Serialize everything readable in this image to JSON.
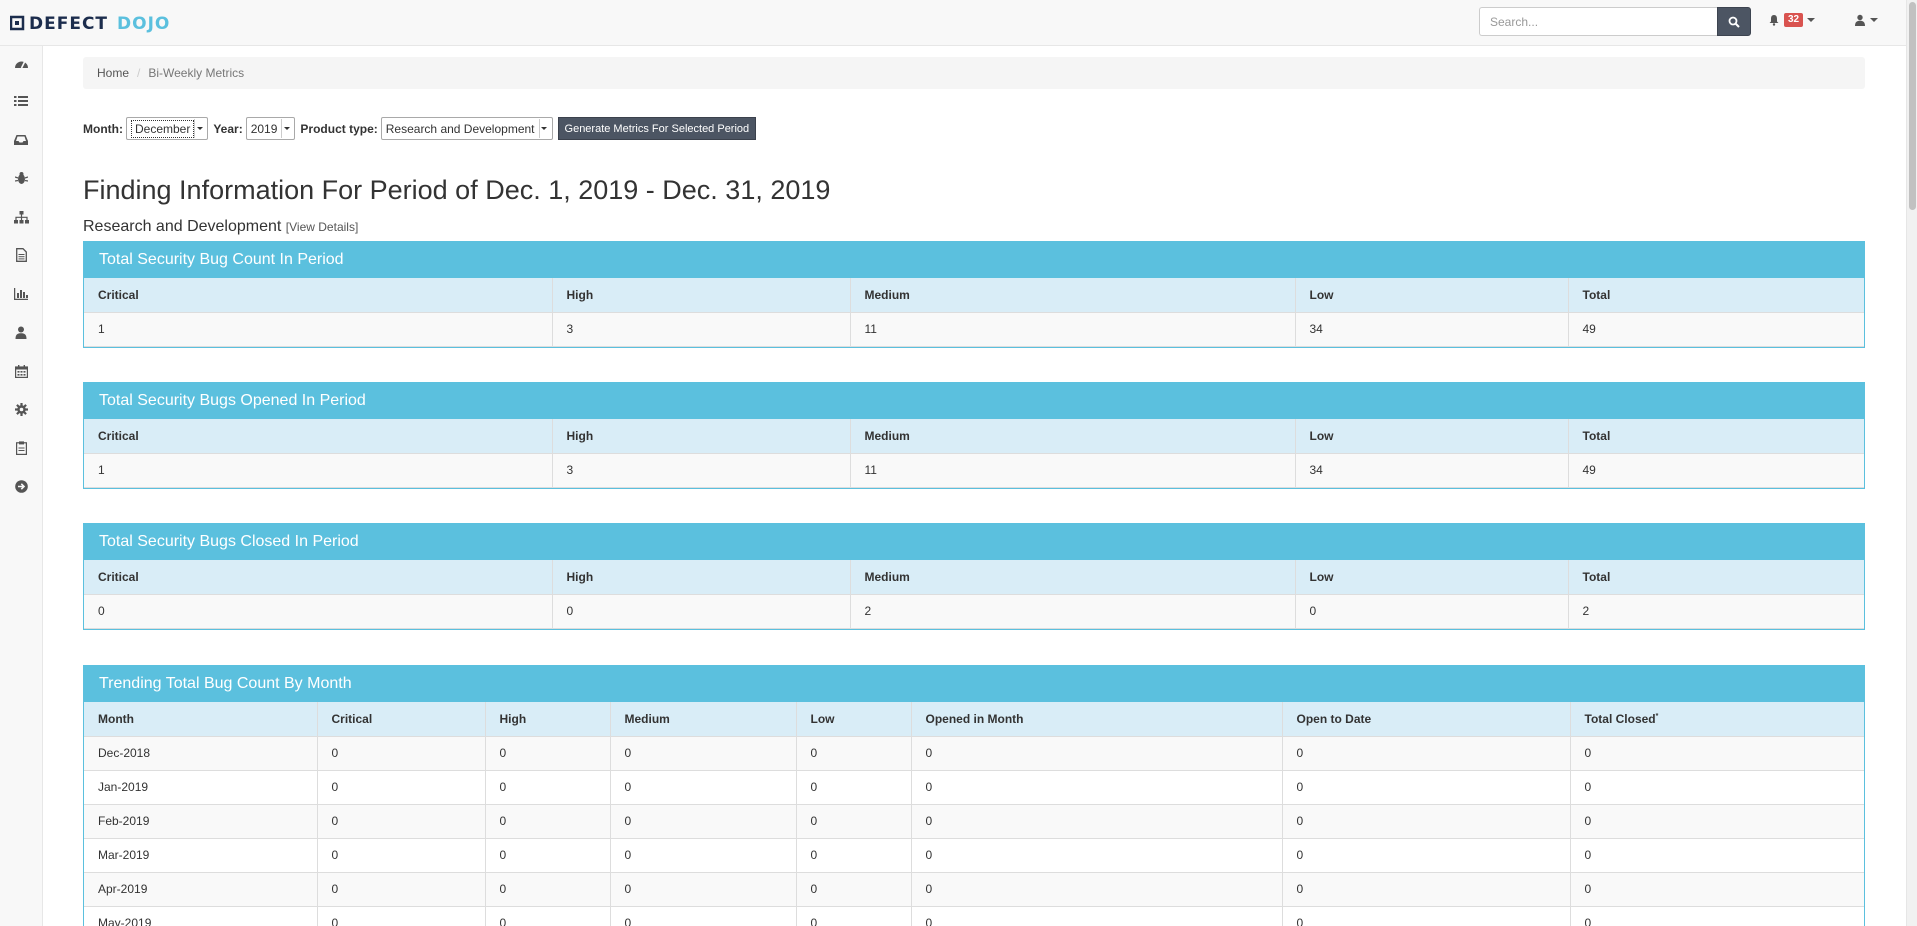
{
  "brand": {
    "name": "DEFECTDOJO",
    "color_primary": "#1c2d4d",
    "color_accent": "#5bc0de"
  },
  "search": {
    "placeholder": "Search..."
  },
  "notifications": {
    "count": "32"
  },
  "sidebar": {
    "items": [
      {
        "icon": "dashboard-icon"
      },
      {
        "icon": "list-icon"
      },
      {
        "icon": "inbox-icon"
      },
      {
        "icon": "bug-icon"
      },
      {
        "icon": "sitemap-icon"
      },
      {
        "icon": "file-icon"
      },
      {
        "icon": "bar-chart-icon"
      },
      {
        "icon": "user-icon"
      },
      {
        "icon": "calendar-icon"
      },
      {
        "icon": "gear-icon"
      },
      {
        "icon": "clipboard-icon"
      },
      {
        "icon": "arrow-circle-right-icon"
      }
    ]
  },
  "breadcrumb": {
    "home": "Home",
    "current": "Bi-Weekly Metrics"
  },
  "filters": {
    "month_label": "Month:",
    "month_value": "December",
    "year_label": "Year:",
    "year_value": "2019",
    "product_type_label": "Product type:",
    "product_type_value": "Research and Development",
    "generate_label": "Generate Metrics For Selected Period"
  },
  "page_title": "Finding Information For Period of Dec. 1, 2019 - Dec. 31, 2019",
  "product_type_heading": "Research and Development",
  "view_details": "View Details",
  "severity_headers": [
    "Critical",
    "High",
    "Medium",
    "Low",
    "Total"
  ],
  "panels": [
    {
      "title": "Total Security Bug Count In Period",
      "values": [
        "1",
        "3",
        "11",
        "34",
        "49"
      ]
    },
    {
      "title": "Total Security Bugs Opened In Period",
      "values": [
        "1",
        "3",
        "11",
        "34",
        "49"
      ]
    },
    {
      "title": "Total Security Bugs Closed In Period",
      "values": [
        "0",
        "0",
        "2",
        "0",
        "2"
      ]
    }
  ],
  "trend": {
    "title": "Trending Total Bug Count By Month",
    "headers": [
      "Month",
      "Critical",
      "High",
      "Medium",
      "Low",
      "Opened in Month",
      "Open to Date",
      "Total Closed"
    ],
    "closed_note_marker": "*",
    "rows": [
      [
        "Dec-2018",
        "0",
        "0",
        "0",
        "0",
        "0",
        "0",
        "0"
      ],
      [
        "Jan-2019",
        "0",
        "0",
        "0",
        "0",
        "0",
        "0",
        "0"
      ],
      [
        "Feb-2019",
        "0",
        "0",
        "0",
        "0",
        "0",
        "0",
        "0"
      ],
      [
        "Mar-2019",
        "0",
        "0",
        "0",
        "0",
        "0",
        "0",
        "0"
      ],
      [
        "Apr-2019",
        "0",
        "0",
        "0",
        "0",
        "0",
        "0",
        "0"
      ],
      [
        "May-2019",
        "0",
        "0",
        "0",
        "0",
        "0",
        "0",
        "0"
      ]
    ]
  }
}
